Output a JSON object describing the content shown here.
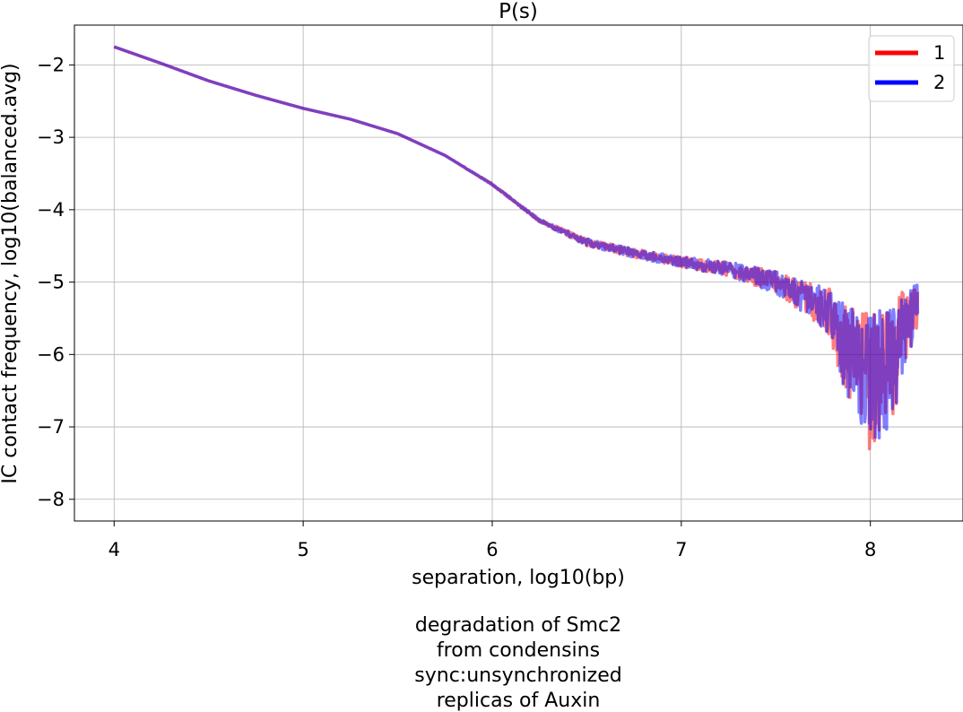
{
  "chart_data": {
    "type": "line",
    "title": "P(s)",
    "xlabel": "separation, log10(bp)",
    "ylabel": "IC contact frequency, log10(balanced.avg)",
    "caption": [
      "degradation of Smc2",
      "from condensins",
      "sync:unsynchronized",
      "replicas of Auxin"
    ],
    "xlim": [
      3.79,
      8.49
    ],
    "ylim": [
      -8.3,
      -1.45
    ],
    "x_ticks": [
      4,
      5,
      6,
      7,
      8
    ],
    "y_ticks": [
      -2,
      -3,
      -4,
      -5,
      -6,
      -7,
      -8
    ],
    "x_tick_labels": [
      "4",
      "5",
      "6",
      "7",
      "8"
    ],
    "y_tick_labels": [
      "−2",
      "−3",
      "−4",
      "−5",
      "−6",
      "−7",
      "−8"
    ],
    "grid": true,
    "legend_position": "top-right",
    "series": [
      {
        "name": "1",
        "color": "#ff0000",
        "legend_color": "#ff0000",
        "x": [
          4.0,
          4.25,
          4.5,
          4.75,
          5.0,
          5.25,
          5.5,
          5.75,
          6.0,
          6.25,
          6.5,
          6.75,
          7.0,
          7.25,
          7.5,
          7.75,
          7.9,
          8.0,
          8.1,
          8.2,
          8.25
        ],
        "y": [
          -1.75,
          -1.98,
          -2.22,
          -2.42,
          -2.6,
          -2.75,
          -2.95,
          -3.25,
          -3.65,
          -4.15,
          -4.45,
          -4.6,
          -4.72,
          -4.82,
          -5.0,
          -5.35,
          -5.8,
          -6.0,
          -5.9,
          -5.6,
          -5.3
        ],
        "spread": [
          0,
          0,
          0,
          0,
          0,
          0,
          0,
          0,
          0.01,
          0.02,
          0.05,
          0.06,
          0.07,
          0.1,
          0.15,
          0.28,
          0.7,
          1.0,
          0.8,
          0.45,
          0.3
        ]
      },
      {
        "name": "2",
        "color": "#0000ff",
        "legend_color": "#0000ff",
        "x": [
          4.0,
          4.25,
          4.5,
          4.75,
          5.0,
          5.25,
          5.5,
          5.75,
          6.0,
          6.25,
          6.5,
          6.75,
          7.0,
          7.25,
          7.5,
          7.75,
          7.9,
          8.0,
          8.1,
          8.2,
          8.25
        ],
        "y": [
          -1.75,
          -1.98,
          -2.22,
          -2.42,
          -2.6,
          -2.75,
          -2.95,
          -3.25,
          -3.65,
          -4.15,
          -4.45,
          -4.6,
          -4.72,
          -4.82,
          -5.0,
          -5.35,
          -5.8,
          -6.0,
          -5.9,
          -5.6,
          -5.3
        ],
        "spread": [
          0,
          0,
          0,
          0,
          0,
          0,
          0,
          0,
          0.01,
          0.02,
          0.05,
          0.06,
          0.07,
          0.1,
          0.15,
          0.28,
          0.7,
          1.0,
          0.8,
          0.45,
          0.3
        ]
      }
    ]
  }
}
